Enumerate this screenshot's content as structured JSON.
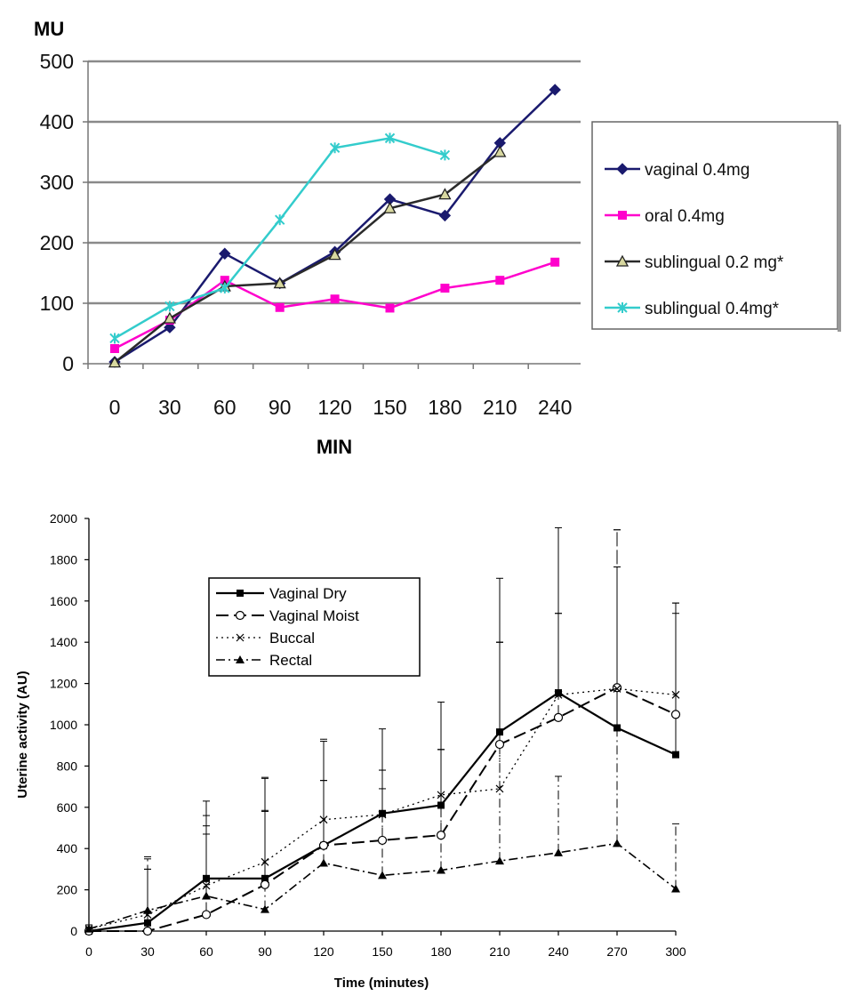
{
  "chart_data": [
    {
      "type": "line",
      "title": "",
      "ylabel": "MU",
      "xlabel": "MIN",
      "x": [
        0,
        30,
        60,
        90,
        120,
        150,
        180,
        210,
        240
      ],
      "xticks": [
        "0",
        "30",
        "60",
        "90",
        "120",
        "150",
        "180",
        "210",
        "240"
      ],
      "yticks": [
        "0",
        "100",
        "200",
        "300",
        "400",
        "500"
      ],
      "ylim": [
        0,
        500
      ],
      "grid": "horizontal",
      "legend_position": "right",
      "series": [
        {
          "name": "vaginal 0.4mg",
          "color": "#1a1a6e",
          "marker": "diamond",
          "x": [
            0,
            30,
            60,
            90,
            120,
            150,
            180,
            210,
            240
          ],
          "values": [
            3,
            60,
            182,
            133,
            185,
            272,
            245,
            365,
            453
          ]
        },
        {
          "name": "oral 0.4mg",
          "color": "#ff00cc",
          "marker": "square",
          "x": [
            0,
            30,
            60,
            90,
            120,
            150,
            180,
            210,
            240
          ],
          "values": [
            25,
            72,
            138,
            93,
            107,
            92,
            125,
            138,
            168
          ]
        },
        {
          "name": "sublingual 0.2 mg*",
          "color": "#2a2a2a",
          "marker": "triangle-open",
          "x": [
            0,
            30,
            60,
            90,
            120,
            150,
            180,
            210
          ],
          "values": [
            2,
            75,
            128,
            133,
            180,
            257,
            280,
            350
          ]
        },
        {
          "name": "sublingual 0.4mg*",
          "color": "#33cccc",
          "marker": "star",
          "x": [
            0,
            30,
            60,
            90,
            120,
            150,
            180
          ],
          "values": [
            42,
            95,
            125,
            238,
            357,
            373,
            345
          ]
        }
      ]
    },
    {
      "type": "line",
      "title": "",
      "ylabel": "Uterine activity (AU)",
      "xlabel": "Time (minutes)",
      "x": [
        0,
        30,
        60,
        90,
        120,
        150,
        180,
        210,
        240,
        270,
        300
      ],
      "xticks": [
        "0",
        "30",
        "60",
        "90",
        "120",
        "150",
        "180",
        "210",
        "240",
        "270",
        "300"
      ],
      "yticks": [
        "0",
        "200",
        "400",
        "600",
        "800",
        "1000",
        "1200",
        "1400",
        "1600",
        "1800",
        "2000"
      ],
      "ylim": [
        0,
        2000
      ],
      "grid": "none",
      "legend_position": "upper-left",
      "error_bars": "upper",
      "series": [
        {
          "name": "Vaginal Dry",
          "style": "solid",
          "marker": "square-filled",
          "values": [
            0,
            40,
            255,
            255,
            415,
            570,
            610,
            965,
            1155,
            985,
            855
          ],
          "err_upper": [
            20,
            300,
            630,
            740,
            920,
            980,
            1110,
            1710,
            1955,
            1765,
            1590
          ]
        },
        {
          "name": "Vaginal Moist",
          "style": "longdash",
          "marker": "circle-open",
          "values": [
            0,
            0,
            80,
            225,
            415,
            440,
            465,
            905,
            1035,
            1180,
            1050
          ],
          "err_upper": [
            10,
            350,
            510,
            585,
            730,
            780,
            880,
            1400,
            1540,
            1945,
            1540
          ]
        },
        {
          "name": "Buccal",
          "style": "dotted",
          "marker": "x",
          "values": [
            10,
            80,
            220,
            335,
            540,
            565,
            660,
            690,
            1145,
            1175,
            1145
          ],
          "err_upper": [
            30,
            360,
            560,
            745,
            930,
            690,
            880,
            1400,
            1540,
            1765,
            1590
          ]
        },
        {
          "name": "Rectal",
          "style": "dashdot",
          "marker": "triangle-filled",
          "values": [
            10,
            100,
            170,
            105,
            330,
            270,
            295,
            340,
            380,
            425,
            205
          ],
          "err_upper": [
            30,
            300,
            470,
            580,
            730,
            780,
            880,
            1400,
            750,
            1945,
            520
          ]
        }
      ]
    }
  ]
}
